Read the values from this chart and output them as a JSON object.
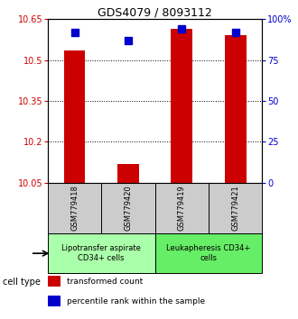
{
  "title": "GDS4079 / 8093112",
  "samples": [
    "GSM779418",
    "GSM779420",
    "GSM779419",
    "GSM779421"
  ],
  "red_values": [
    10.535,
    10.12,
    10.615,
    10.59
  ],
  "blue_values": [
    92,
    87,
    94,
    92
  ],
  "ylim_left": [
    10.05,
    10.65
  ],
  "ylim_right": [
    0,
    100
  ],
  "yticks_left": [
    10.05,
    10.2,
    10.35,
    10.5,
    10.65
  ],
  "yticks_right": [
    0,
    25,
    50,
    75,
    100
  ],
  "ytick_labels_left": [
    "10.05",
    "10.2",
    "10.35",
    "10.5",
    "10.65"
  ],
  "ytick_labels_right": [
    "0",
    "25",
    "50",
    "75",
    "100%"
  ],
  "groups": [
    {
      "label": "Lipotransfer aspirate\nCD34+ cells",
      "color": "#aaffaa",
      "samples": [
        0,
        1
      ]
    },
    {
      "label": "Leukapheresis CD34+\ncells",
      "color": "#66ee66",
      "samples": [
        2,
        3
      ]
    }
  ],
  "cell_type_label": "cell type",
  "legend_red": "transformed count",
  "legend_blue": "percentile rank within the sample",
  "bar_color": "#cc0000",
  "dot_color": "#0000cc",
  "bar_width": 0.4,
  "dot_size": 28,
  "background_color": "#ffffff",
  "plot_bg_color": "#ffffff",
  "sample_box_color": "#cccccc",
  "title_fontsize": 9,
  "tick_fontsize": 7,
  "legend_fontsize": 6.5,
  "sample_fontsize": 6,
  "group_fontsize": 6
}
